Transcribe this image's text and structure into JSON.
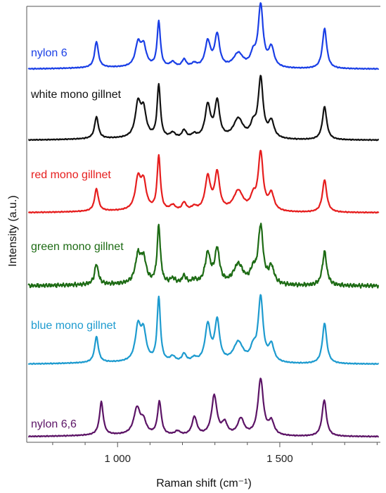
{
  "chart_data": {
    "type": "line",
    "title": "",
    "xlabel": "Raman shift (cm⁻¹)",
    "ylabel": "Intensity (a.u.)",
    "xlim": [
      720,
      1810
    ],
    "x_ticks": [
      1000,
      1500
    ],
    "x_tick_labels": [
      "1 000",
      "1 500"
    ],
    "y_ticks": "none",
    "grid": false,
    "legend": "inline labels, left of each trace",
    "offset_stacked": true,
    "peak_shape": "lorentzian",
    "series": [
      {
        "name": "nylon 6",
        "color": "#1a3fe6",
        "peaks": [
          {
            "x": 935,
            "y": 0.4,
            "w": 7
          },
          {
            "x": 1063,
            "y": 0.35,
            "w": 10
          },
          {
            "x": 1080,
            "y": 0.31,
            "w": 10
          },
          {
            "x": 1127,
            "y": 0.7,
            "w": 6
          },
          {
            "x": 1170,
            "y": 0.08,
            "w": 10
          },
          {
            "x": 1205,
            "y": 0.12,
            "w": 8
          },
          {
            "x": 1236,
            "y": 0.06,
            "w": 10
          },
          {
            "x": 1278,
            "y": 0.4,
            "w": 10
          },
          {
            "x": 1307,
            "y": 0.5,
            "w": 9
          },
          {
            "x": 1372,
            "y": 0.22,
            "w": 18
          },
          {
            "x": 1418,
            "y": 0.18,
            "w": 10
          },
          {
            "x": 1441,
            "y": 0.95,
            "w": 9
          },
          {
            "x": 1474,
            "y": 0.3,
            "w": 10
          },
          {
            "x": 1638,
            "y": 0.62,
            "w": 8
          }
        ]
      },
      {
        "name": "white mono gillnet",
        "color": "#111111",
        "peaks": [
          {
            "x": 935,
            "y": 0.33,
            "w": 7
          },
          {
            "x": 1063,
            "y": 0.5,
            "w": 10
          },
          {
            "x": 1080,
            "y": 0.4,
            "w": 10
          },
          {
            "x": 1127,
            "y": 0.8,
            "w": 6
          },
          {
            "x": 1170,
            "y": 0.08,
            "w": 10
          },
          {
            "x": 1205,
            "y": 0.12,
            "w": 8
          },
          {
            "x": 1236,
            "y": 0.06,
            "w": 10
          },
          {
            "x": 1278,
            "y": 0.5,
            "w": 10
          },
          {
            "x": 1307,
            "y": 0.55,
            "w": 9
          },
          {
            "x": 1372,
            "y": 0.3,
            "w": 18
          },
          {
            "x": 1418,
            "y": 0.18,
            "w": 10
          },
          {
            "x": 1441,
            "y": 0.9,
            "w": 9
          },
          {
            "x": 1474,
            "y": 0.25,
            "w": 10
          },
          {
            "x": 1638,
            "y": 0.5,
            "w": 8
          }
        ]
      },
      {
        "name": "red mono gillnet",
        "color": "#e61e1e",
        "peaks": [
          {
            "x": 935,
            "y": 0.33,
            "w": 7
          },
          {
            "x": 1063,
            "y": 0.45,
            "w": 10
          },
          {
            "x": 1080,
            "y": 0.4,
            "w": 10
          },
          {
            "x": 1127,
            "y": 0.8,
            "w": 6
          },
          {
            "x": 1170,
            "y": 0.08,
            "w": 10
          },
          {
            "x": 1205,
            "y": 0.12,
            "w": 8
          },
          {
            "x": 1236,
            "y": 0.06,
            "w": 10
          },
          {
            "x": 1278,
            "y": 0.5,
            "w": 10
          },
          {
            "x": 1307,
            "y": 0.55,
            "w": 9
          },
          {
            "x": 1372,
            "y": 0.3,
            "w": 18
          },
          {
            "x": 1418,
            "y": 0.18,
            "w": 10
          },
          {
            "x": 1441,
            "y": 0.85,
            "w": 9
          },
          {
            "x": 1474,
            "y": 0.25,
            "w": 10
          },
          {
            "x": 1638,
            "y": 0.48,
            "w": 8
          }
        ]
      },
      {
        "name": "green mono gillnet",
        "color": "#1d6b14",
        "peaks": [
          {
            "x": 935,
            "y": 0.3,
            "w": 7
          },
          {
            "x": 1063,
            "y": 0.4,
            "w": 10
          },
          {
            "x": 1080,
            "y": 0.35,
            "w": 10
          },
          {
            "x": 1127,
            "y": 0.85,
            "w": 6
          },
          {
            "x": 1170,
            "y": 0.08,
            "w": 10
          },
          {
            "x": 1205,
            "y": 0.12,
            "w": 8
          },
          {
            "x": 1236,
            "y": 0.06,
            "w": 10
          },
          {
            "x": 1278,
            "y": 0.45,
            "w": 10
          },
          {
            "x": 1307,
            "y": 0.5,
            "w": 9
          },
          {
            "x": 1372,
            "y": 0.3,
            "w": 18
          },
          {
            "x": 1418,
            "y": 0.18,
            "w": 10
          },
          {
            "x": 1441,
            "y": 0.85,
            "w": 9
          },
          {
            "x": 1474,
            "y": 0.25,
            "w": 10
          },
          {
            "x": 1638,
            "y": 0.5,
            "w": 8
          }
        ]
      },
      {
        "name": "blue mono gillnet",
        "color": "#1e9bcf",
        "peaks": [
          {
            "x": 935,
            "y": 0.38,
            "w": 7
          },
          {
            "x": 1063,
            "y": 0.5,
            "w": 10
          },
          {
            "x": 1080,
            "y": 0.42,
            "w": 10
          },
          {
            "x": 1127,
            "y": 0.95,
            "w": 6
          },
          {
            "x": 1170,
            "y": 0.08,
            "w": 10
          },
          {
            "x": 1205,
            "y": 0.12,
            "w": 8
          },
          {
            "x": 1236,
            "y": 0.06,
            "w": 10
          },
          {
            "x": 1278,
            "y": 0.55,
            "w": 10
          },
          {
            "x": 1307,
            "y": 0.6,
            "w": 9
          },
          {
            "x": 1372,
            "y": 0.3,
            "w": 18
          },
          {
            "x": 1418,
            "y": 0.18,
            "w": 10
          },
          {
            "x": 1441,
            "y": 0.95,
            "w": 9
          },
          {
            "x": 1474,
            "y": 0.25,
            "w": 10
          },
          {
            "x": 1638,
            "y": 0.6,
            "w": 8
          }
        ]
      },
      {
        "name": "nylon 6,6",
        "color": "#5c1466",
        "peaks": [
          {
            "x": 950,
            "y": 0.5,
            "w": 7
          },
          {
            "x": 1060,
            "y": 0.4,
            "w": 12
          },
          {
            "x": 1080,
            "y": 0.18,
            "w": 10
          },
          {
            "x": 1129,
            "y": 0.5,
            "w": 7
          },
          {
            "x": 1185,
            "y": 0.06,
            "w": 10
          },
          {
            "x": 1237,
            "y": 0.28,
            "w": 9
          },
          {
            "x": 1298,
            "y": 0.6,
            "w": 10
          },
          {
            "x": 1330,
            "y": 0.18,
            "w": 10
          },
          {
            "x": 1380,
            "y": 0.25,
            "w": 12
          },
          {
            "x": 1441,
            "y": 0.85,
            "w": 10
          },
          {
            "x": 1474,
            "y": 0.2,
            "w": 10
          },
          {
            "x": 1637,
            "y": 0.55,
            "w": 8
          }
        ]
      }
    ]
  }
}
